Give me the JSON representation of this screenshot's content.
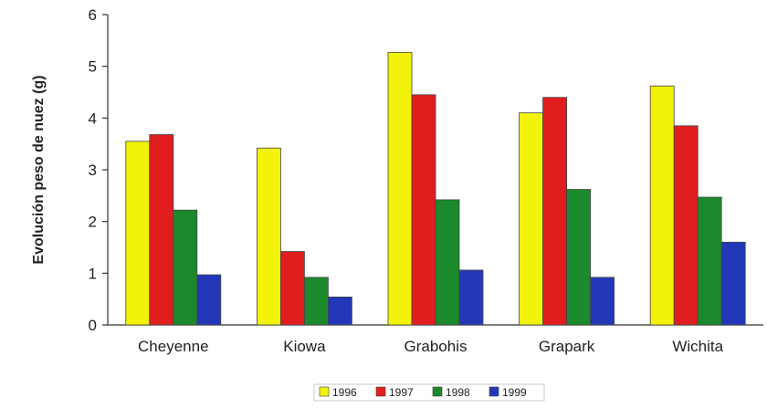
{
  "chart_data": {
    "type": "bar",
    "title": "",
    "xlabel": "",
    "ylabel": "Evolución peso de nuez (g)",
    "ylim": [
      0,
      6
    ],
    "yticks": [
      "0",
      "1",
      "2",
      "3",
      "4",
      "5",
      "6"
    ],
    "categories": [
      "Cheyenne",
      "Kiowa",
      "Grabohis",
      "Grapark",
      "Wichita"
    ],
    "series": [
      {
        "name": "1996",
        "color": "#f2f20a",
        "values": [
          3.55,
          3.42,
          5.27,
          4.1,
          4.62
        ]
      },
      {
        "name": "1997",
        "color": "#e01e1e",
        "values": [
          3.68,
          1.42,
          4.45,
          4.4,
          3.85
        ]
      },
      {
        "name": "1998",
        "color": "#1a8a2c",
        "values": [
          2.22,
          0.92,
          2.42,
          2.62,
          2.47
        ]
      },
      {
        "name": "1999",
        "color": "#2338b8",
        "values": [
          0.97,
          0.54,
          1.06,
          0.92,
          1.6
        ]
      }
    ],
    "grid": false,
    "legend": "bottom"
  }
}
